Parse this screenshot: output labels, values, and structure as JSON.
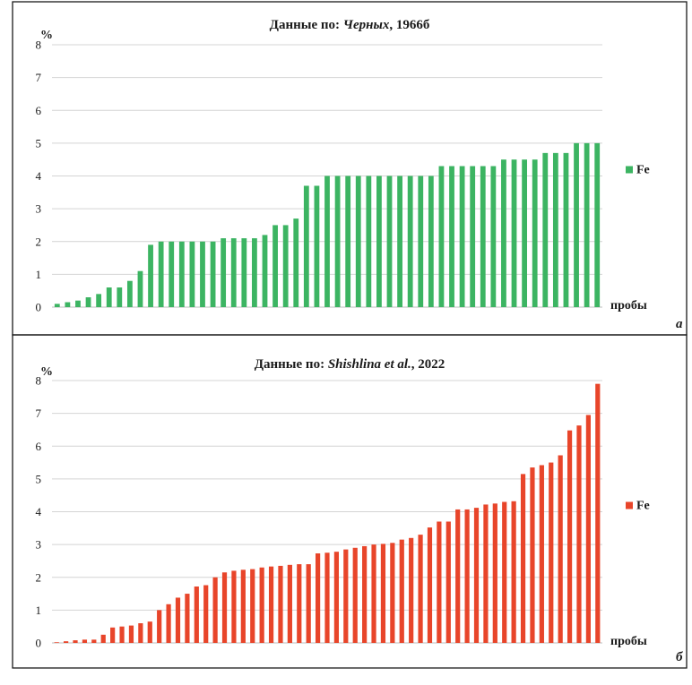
{
  "chart_data": [
    {
      "type": "bar",
      "panel_label": "а",
      "title_prefix": "Данные по: ",
      "title_italic": "Черных",
      "title_suffix": ", 1966б",
      "ylabel": "%",
      "xlabel": "пробы",
      "ylim": [
        0,
        8
      ],
      "yticks": [
        0,
        1,
        2,
        3,
        4,
        5,
        6,
        7,
        8
      ],
      "grid": true,
      "legend_position": "right",
      "series": [
        {
          "name": "Fe",
          "color": "#3cb462",
          "values": [
            0.1,
            0.15,
            0.2,
            0.3,
            0.4,
            0.6,
            0.6,
            0.8,
            1.1,
            1.9,
            2.0,
            2.0,
            2.0,
            2.0,
            2.0,
            2.0,
            2.1,
            2.1,
            2.1,
            2.1,
            2.2,
            2.5,
            2.5,
            2.7,
            3.7,
            3.7,
            4.0,
            4.0,
            4.0,
            4.0,
            4.0,
            4.0,
            4.0,
            4.0,
            4.0,
            4.0,
            4.0,
            4.3,
            4.3,
            4.3,
            4.3,
            4.3,
            4.3,
            4.5,
            4.5,
            4.5,
            4.5,
            4.7,
            4.7,
            4.7,
            5.0,
            5.0,
            5.0
          ]
        }
      ]
    },
    {
      "type": "bar",
      "panel_label": "б",
      "title_prefix": "Данные по: ",
      "title_italic": "Shishlina et al.",
      "title_suffix": ", 2022",
      "ylabel": "%",
      "xlabel": "пробы",
      "ylim": [
        0,
        8
      ],
      "yticks": [
        0,
        1,
        2,
        3,
        4,
        5,
        6,
        7,
        8
      ],
      "grid": true,
      "legend_position": "right",
      "series": [
        {
          "name": "Fe",
          "color": "#e8452a",
          "values": [
            0.02,
            0.05,
            0.08,
            0.1,
            0.1,
            0.25,
            0.47,
            0.5,
            0.53,
            0.6,
            0.65,
            1.0,
            1.18,
            1.38,
            1.5,
            1.72,
            1.76,
            2.0,
            2.15,
            2.2,
            2.23,
            2.25,
            2.3,
            2.33,
            2.35,
            2.38,
            2.4,
            2.4,
            2.73,
            2.75,
            2.78,
            2.85,
            2.9,
            2.95,
            3.0,
            3.02,
            3.05,
            3.15,
            3.2,
            3.3,
            3.52,
            3.7,
            3.7,
            4.07,
            4.07,
            4.12,
            4.22,
            4.25,
            4.3,
            4.32,
            5.15,
            5.35,
            5.42,
            5.5,
            5.72,
            6.48,
            6.63,
            6.95,
            7.9
          ]
        }
      ]
    }
  ]
}
